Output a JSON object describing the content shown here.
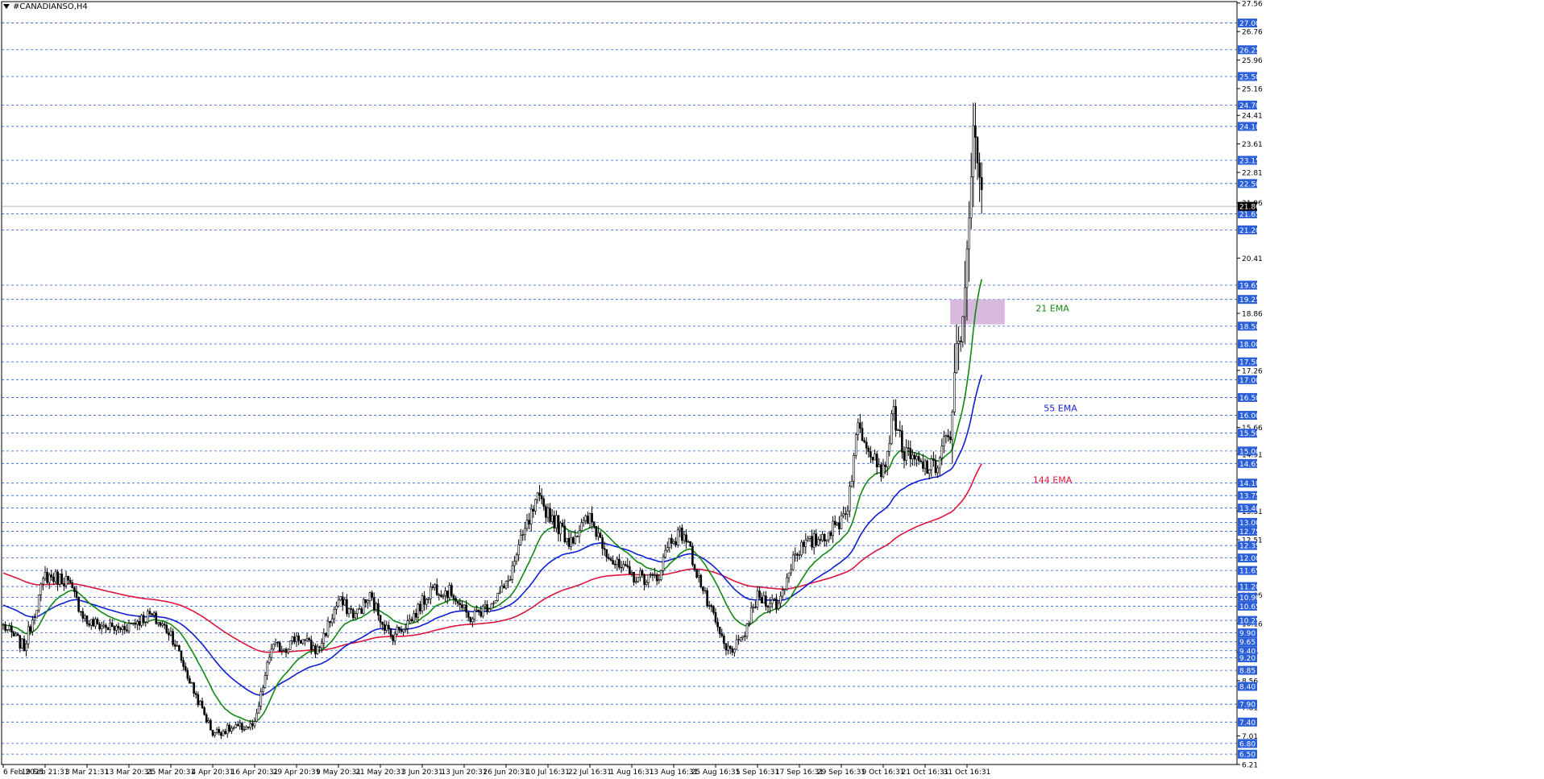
{
  "chart_title": "#CANADIANSO,H4",
  "colors": {
    "background": "#ffffff",
    "grid_line": "#2b5fd9",
    "candle": "#000000",
    "ema21": "#118811",
    "ema55": "#0f1fd0",
    "ema144": "#dc143c",
    "zone": "#d7b9dc",
    "level_tag_bg": "#2b5fd9"
  },
  "chart_data": {
    "type": "candlestick",
    "timeframe": "H4",
    "ylim": [
      6.21,
      27.6
    ],
    "grid": true,
    "y_ticks": [
      "27.56",
      "26.76",
      "25.96",
      "25.16",
      "24.41",
      "23.61",
      "22.81",
      "21.96",
      "20.41",
      "18.86",
      "17.26",
      "15.66",
      "14.91",
      "13.31",
      "12.51",
      "10.96",
      "10.16",
      "9.36",
      "8.56",
      "7.81",
      "7.01",
      "6.21"
    ],
    "level_lines": [
      27.0,
      26.25,
      25.5,
      24.7,
      24.1,
      23.15,
      22.5,
      21.65,
      21.2,
      19.65,
      19.25,
      18.5,
      18.0,
      17.5,
      17.0,
      16.5,
      16.0,
      15.5,
      15.0,
      14.65,
      14.1,
      13.75,
      13.4,
      13.0,
      12.75,
      12.35,
      12.0,
      11.65,
      11.2,
      10.9,
      10.65,
      10.25,
      9.9,
      9.65,
      9.4,
      9.2,
      8.85,
      8.4,
      7.9,
      7.4,
      6.8,
      6.5
    ],
    "level_labels": [
      "27.00",
      "26.25",
      "25.50",
      "24.70",
      "24.10",
      "23.15",
      "22.50",
      "21.65",
      "21.20",
      "19.65",
      "19.25",
      "18.50",
      "18.00",
      "17.50",
      "17.00",
      "16.50",
      "16.00",
      "15.50",
      "15.00",
      "14.65",
      "14.10",
      "13.75",
      "13.40",
      "13.00",
      "12.75",
      "12.35",
      "12.00",
      "11.65",
      "11.20",
      "10.90",
      "10.65",
      "10.25",
      "9.90",
      "9.65",
      "9.40",
      "9.20",
      "8.85",
      "8.40",
      "7.90",
      "7.40",
      "6.80",
      "6.50"
    ],
    "current_price": 21.86,
    "current_price_label": "21.86",
    "x_labels": [
      "6 Feb 2025",
      "19 Feb 21:31",
      "3 Mar 21:31",
      "13 Mar 20:31",
      "25 Mar 20:31",
      "4 Apr 20:31",
      "16 Apr 20:31",
      "29 Apr 20:31",
      "9 May 20:31",
      "21 May 20:31",
      "3 Jun 20:31",
      "13 Jun 20:31",
      "26 Jun 20:31",
      "10 Jul 16:31",
      "22 Jul 16:31",
      "1 Aug 16:31",
      "13 Aug 16:31",
      "25 Aug 16:31",
      "5 Sep 16:31",
      "17 Sep 16:31",
      "29 Sep 16:31",
      "9 Oct 16:31",
      "21 Oct 16:31",
      "31 Oct 16:31"
    ],
    "x_label_index": [
      0,
      20,
      40,
      60,
      80,
      100,
      120,
      140,
      160,
      180,
      200,
      220,
      240,
      260,
      280,
      300,
      320,
      340,
      360,
      380,
      400,
      420,
      440,
      460
    ],
    "close_anchors": [
      [
        0,
        10.1
      ],
      [
        10,
        9.5
      ],
      [
        20,
        11.5
      ],
      [
        30,
        11.4
      ],
      [
        40,
        10.2
      ],
      [
        55,
        10.0
      ],
      [
        70,
        10.4
      ],
      [
        80,
        9.9
      ],
      [
        90,
        8.4
      ],
      [
        100,
        7.1
      ],
      [
        108,
        7.2
      ],
      [
        120,
        7.3
      ],
      [
        128,
        9.5
      ],
      [
        135,
        9.5
      ],
      [
        140,
        9.8
      ],
      [
        150,
        9.4
      ],
      [
        160,
        10.8
      ],
      [
        168,
        10.4
      ],
      [
        175,
        10.9
      ],
      [
        185,
        9.8
      ],
      [
        195,
        10.3
      ],
      [
        205,
        11.2
      ],
      [
        215,
        11.0
      ],
      [
        222,
        10.3
      ],
      [
        230,
        10.6
      ],
      [
        240,
        11.2
      ],
      [
        248,
        12.6
      ],
      [
        255,
        13.6
      ],
      [
        260,
        13.3
      ],
      [
        270,
        12.5
      ],
      [
        280,
        13.1
      ],
      [
        292,
        11.8
      ],
      [
        300,
        11.5
      ],
      [
        312,
        11.4
      ],
      [
        318,
        12.5
      ],
      [
        325,
        12.7
      ],
      [
        335,
        10.9
      ],
      [
        345,
        9.4
      ],
      [
        352,
        9.6
      ],
      [
        360,
        10.9
      ],
      [
        370,
        10.7
      ],
      [
        378,
        12.2
      ],
      [
        388,
        12.5
      ],
      [
        398,
        12.9
      ],
      [
        403,
        13.5
      ],
      [
        408,
        15.7
      ],
      [
        415,
        15.0
      ],
      [
        420,
        14.4
      ],
      [
        425,
        16.1
      ],
      [
        430,
        14.9
      ],
      [
        438,
        14.6
      ],
      [
        445,
        14.5
      ],
      [
        450,
        15.5
      ],
      [
        452,
        15.1
      ],
      [
        455,
        17.9
      ],
      [
        458,
        18.5
      ],
      [
        460,
        20.8
      ],
      [
        463,
        23.9
      ],
      [
        467,
        22.1
      ]
    ],
    "ema_labels": {
      "ema21": "21 EMA",
      "ema55": "55 EMA",
      "ema144": "144 EMA"
    },
    "ema_label_price": {
      "ema21": 19.0,
      "ema55": 16.2,
      "ema144": 14.2
    },
    "zone": {
      "from_index": 452,
      "to_index": 478,
      "low": 18.55,
      "high": 19.25
    }
  }
}
